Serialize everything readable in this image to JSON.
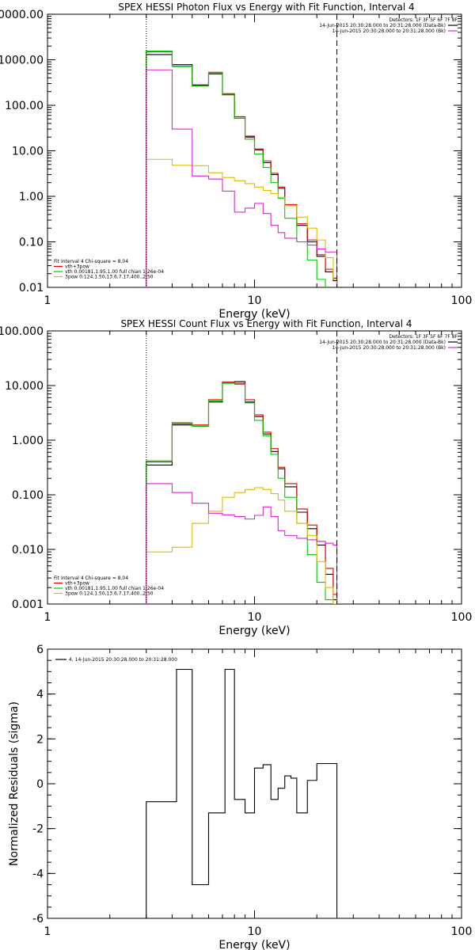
{
  "chart_data": [
    {
      "type": "line",
      "title": "SPEX HESSI Photon Flux vs Energy with Fit Function, Interval 4",
      "xlabel": "Energy (keV)",
      "ylabel": "",
      "x_scale": "log",
      "y_scale": "log",
      "xlim": [
        1,
        100
      ],
      "ylim": [
        0.01,
        10000
      ],
      "x_ticks": [
        {
          "v": 1,
          "label": "1"
        },
        {
          "v": 10,
          "label": "10"
        },
        {
          "v": 100,
          "label": "100"
        }
      ],
      "y_ticks": [
        {
          "v": 10000,
          "label": "10000.00"
        },
        {
          "v": 1000,
          "label": "1000.00"
        },
        {
          "v": 100,
          "label": "100.00"
        },
        {
          "v": 10,
          "label": "10.00"
        },
        {
          "v": 1,
          "label": "1.00"
        },
        {
          "v": 0.1,
          "label": "0.10"
        },
        {
          "v": 0.01,
          "label": "0.01"
        }
      ],
      "vlines": [
        {
          "x": 3,
          "style": "dotted"
        },
        {
          "x": 25,
          "style": "dashed"
        }
      ],
      "info_lines": [
        {
          "text": "Detectors: 1F 3F 5F 6F 7F 8F",
          "color": ""
        },
        {
          "text": "14-Jun-2015 20:30:28.000 to 20:31:28.000 (Data-Bk)",
          "color": "#000000"
        },
        {
          "text": "14-Jun-2015 20:30:28.000 to 20:31:28.000 (Bk)",
          "color": "#dd22dd"
        }
      ],
      "legend": [
        {
          "text": "Fit Interval 4   Chi-square = 8.04",
          "color": ""
        },
        {
          "text": "vth+3pow",
          "color": "#dd0000"
        },
        {
          "text": "vth 0.00181,1.95,1.00  full chian 1.26e-04",
          "color": "#00cc00"
        },
        {
          "text": "3pow 0.124,1.50,13.6,7.17,400.,2.50",
          "color": "#ddbb00"
        }
      ],
      "series": [
        {
          "role": "data-bk",
          "color": "#000000",
          "values": [
            1300,
            780,
            280,
            490,
            170,
            52,
            20,
            10.5,
            5.5,
            3.0,
            1.5,
            0.62,
            0.23,
            0.1,
            0.048,
            0.022,
            0.014
          ]
        },
        {
          "role": "vth+3pow",
          "color": "#dd0000",
          "values": [
            1500,
            720,
            270,
            530,
            180,
            56,
            21,
            11,
            6.0,
            3.2,
            1.6,
            0.66,
            0.25,
            0.11,
            0.052,
            0.025,
            0.016
          ]
        },
        {
          "role": "vth",
          "color": "#00cc00",
          "values": [
            1550,
            710,
            265,
            520,
            175,
            52,
            18,
            8.5,
            4.3,
            2.0,
            0.9,
            0.33,
            0.1,
            0.04,
            0.015,
            0.009,
            0.006
          ]
        },
        {
          "role": "3pow",
          "color": "#ddbb00",
          "values": [
            6.5,
            4.8,
            4.7,
            3.3,
            2.6,
            2.2,
            1.9,
            1.6,
            1.35,
            1.15,
            0.95,
            0.62,
            0.35,
            0.2,
            0.11,
            0.045,
            0.015
          ]
        },
        {
          "role": "bk",
          "color": "#dd22dd",
          "values": [
            600,
            30,
            2.8,
            2.4,
            1.3,
            0.45,
            0.55,
            0.7,
            0.42,
            0.23,
            0.16,
            0.12,
            0.1,
            0.085,
            0.07,
            0.06,
            0.06
          ]
        }
      ]
    },
    {
      "type": "line",
      "title": "SPEX HESSI Count Flux vs Energy with Fit Function, Interval 4",
      "xlabel": "Energy (keV)",
      "ylabel": "",
      "x_scale": "log",
      "y_scale": "log",
      "xlim": [
        1,
        100
      ],
      "ylim": [
        0.001,
        100
      ],
      "x_ticks": [
        {
          "v": 1,
          "label": "1"
        },
        {
          "v": 10,
          "label": "10"
        },
        {
          "v": 100,
          "label": "100"
        }
      ],
      "y_ticks": [
        {
          "v": 100,
          "label": "100.000"
        },
        {
          "v": 10,
          "label": "10.000"
        },
        {
          "v": 1,
          "label": "1.000"
        },
        {
          "v": 0.1,
          "label": "0.100"
        },
        {
          "v": 0.01,
          "label": "0.010"
        },
        {
          "v": 0.001,
          "label": "0.001"
        }
      ],
      "vlines": [
        {
          "x": 3,
          "style": "dotted"
        },
        {
          "x": 25,
          "style": "dashed"
        }
      ],
      "info_lines": [
        {
          "text": "Detectors: 1F 3F 5F 6F 7F 8F",
          "color": ""
        },
        {
          "text": "14-Jun-2015 20:30:28.000 to 20:31:28.000 (Data-Bk)",
          "color": "#000000"
        },
        {
          "text": "14-Jun-2015 20:30:28.000 to 20:31:28.000 (Bk)",
          "color": "#dd22dd"
        }
      ],
      "legend": [
        {
          "text": "Fit Interval 4   Chi-square = 8.04",
          "color": ""
        },
        {
          "text": "vth+3pow",
          "color": "#dd0000"
        },
        {
          "text": "vth 0.00181,1.95,1.00  full chian 1.26e-04",
          "color": "#00cc00"
        },
        {
          "text": "3pow 0.124,1.50,13.6,7.17,400.,2.50",
          "color": "#ddbb00"
        }
      ],
      "series": [
        {
          "role": "data-bk",
          "color": "#000000",
          "values": [
            0.35,
            1.9,
            1.8,
            5.0,
            11.5,
            11.8,
            5.0,
            2.7,
            1.3,
            0.62,
            0.3,
            0.14,
            0.048,
            0.024,
            0.012,
            0.0035,
            0.0012
          ]
        },
        {
          "role": "vth+3pow",
          "color": "#dd0000",
          "values": [
            0.4,
            2.0,
            1.9,
            5.5,
            11.5,
            11.0,
            5.5,
            2.9,
            1.4,
            0.7,
            0.32,
            0.16,
            0.055,
            0.028,
            0.014,
            0.0045,
            0.0015
          ]
        },
        {
          "role": "vth",
          "color": "#00cc00",
          "values": [
            0.42,
            2.1,
            1.8,
            5.2,
            11.0,
            10.5,
            4.8,
            2.3,
            1.2,
            0.55,
            0.2,
            0.09,
            0.03,
            0.008,
            0.0025,
            0.0012,
            0.001
          ]
        },
        {
          "role": "3pow",
          "color": "#ddbb00",
          "values": [
            0.009,
            0.011,
            0.03,
            0.05,
            0.09,
            0.11,
            0.125,
            0.135,
            0.125,
            0.105,
            0.08,
            0.05,
            0.03,
            0.018,
            0.006,
            0.002,
            0.001
          ]
        },
        {
          "role": "bk",
          "color": "#dd22dd",
          "values": [
            0.16,
            0.11,
            0.07,
            0.046,
            0.043,
            0.04,
            0.036,
            0.042,
            0.06,
            0.04,
            0.022,
            0.018,
            0.016,
            0.015,
            0.014,
            0.013,
            0.012
          ]
        }
      ]
    },
    {
      "type": "line",
      "title": "",
      "xlabel": "Energy (keV)",
      "ylabel": "Normalized Residuals (sigma)",
      "x_scale": "log",
      "y_scale": "linear",
      "xlim": [
        1,
        100
      ],
      "ylim": [
        -6,
        6
      ],
      "x_ticks": [
        {
          "v": 1,
          "label": "1"
        },
        {
          "v": 10,
          "label": "10"
        },
        {
          "v": 100,
          "label": "100"
        }
      ],
      "y_ticks": [
        {
          "v": 6,
          "label": "6"
        },
        {
          "v": 4,
          "label": "4"
        },
        {
          "v": 2,
          "label": "2"
        },
        {
          "v": 0,
          "label": "0"
        },
        {
          "v": -2,
          "label": "-2"
        },
        {
          "v": -4,
          "label": "-4"
        },
        {
          "v": -6,
          "label": "-6"
        }
      ],
      "vlines": [],
      "info_lines": [],
      "legend": [
        {
          "text": "4, 14-Jun-2015 20:30:28.000 to 20:31:28.000",
          "color": "#000000"
        }
      ],
      "series": [
        {
          "role": "residuals",
          "color": "#000000",
          "values": [
            -0.8,
            5.1,
            -4.5,
            -1.3,
            5.1,
            -0.7,
            -1.3,
            0.7,
            0.85,
            -0.7,
            -0.2,
            0.35,
            0.25,
            -1.3,
            0.15,
            0.9
          ]
        }
      ]
    }
  ]
}
